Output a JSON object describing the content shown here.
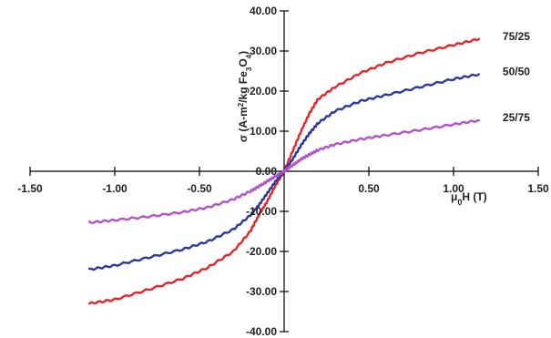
{
  "chart_data": {
    "type": "line",
    "title": "",
    "xlabel": {
      "prefix": "μ",
      "subscript": "0",
      "suffix": "H (T)"
    },
    "ylabel": {
      "p1": "σ (A-m",
      "sup": "2",
      "p2": "/kg Fe",
      "sub1": "3",
      "p3": "O",
      "sub2": "4",
      "p4": ")"
    },
    "xlim": [
      -1.5,
      1.5
    ],
    "ylim": [
      -40,
      40
    ],
    "x_ticks": [
      -1.5,
      -1.0,
      -0.5,
      0.0,
      0.5,
      1.0,
      1.5
    ],
    "x_tick_labels": [
      "-1.50",
      "-1.00",
      "-0.50",
      "0.00",
      "0.50",
      "1.00",
      "1.50"
    ],
    "y_ticks": [
      40,
      30,
      20,
      10,
      0,
      -10,
      -20,
      -30,
      -40
    ],
    "y_tick_labels": [
      "40.00",
      "30.00",
      "20.00",
      "10.00",
      "0.00",
      "-10.00",
      "-20.00",
      "-30.00",
      "-40.00"
    ],
    "grid": false,
    "legend": "inline labels at right end of curves",
    "series": [
      {
        "name": "75/25",
        "color": "#e3262b",
        "x": [
          -1.15,
          -1.0,
          -0.8,
          -0.6,
          -0.45,
          -0.3,
          -0.2,
          -0.15,
          -0.1,
          -0.05,
          0.0,
          0.05,
          0.1,
          0.15,
          0.2,
          0.3,
          0.45,
          0.6,
          0.8,
          1.0,
          1.15
        ],
        "y": [
          -33.0,
          -32.0,
          -29.5,
          -26.8,
          -24.0,
          -20.0,
          -15.0,
          -11.0,
          -7.5,
          -3.5,
          0.0,
          5.0,
          10.0,
          14.5,
          18.0,
          21.0,
          24.5,
          27.0,
          29.5,
          31.5,
          33.0
        ]
      },
      {
        "name": "50/50",
        "color": "#2e3a99",
        "x": [
          -1.15,
          -1.0,
          -0.8,
          -0.6,
          -0.45,
          -0.3,
          -0.2,
          -0.15,
          -0.1,
          -0.05,
          0.0,
          0.05,
          0.1,
          0.15,
          0.2,
          0.3,
          0.45,
          0.6,
          0.8,
          1.0,
          1.15
        ],
        "y": [
          -24.5,
          -23.5,
          -21.5,
          -19.5,
          -17.5,
          -14.5,
          -11.0,
          -8.5,
          -5.5,
          -2.5,
          0.0,
          3.0,
          6.5,
          9.5,
          12.0,
          15.0,
          17.5,
          19.0,
          21.0,
          23.0,
          24.2
        ]
      },
      {
        "name": "25/75",
        "color": "#b254c9",
        "x": [
          -1.15,
          -1.0,
          -0.8,
          -0.6,
          -0.45,
          -0.3,
          -0.2,
          -0.15,
          -0.1,
          -0.05,
          0.0,
          0.05,
          0.1,
          0.15,
          0.2,
          0.3,
          0.45,
          0.6,
          0.8,
          1.0,
          1.15
        ],
        "y": [
          -12.8,
          -12.2,
          -11.3,
          -10.2,
          -9.0,
          -7.0,
          -5.0,
          -3.8,
          -2.5,
          -1.2,
          0.0,
          1.5,
          3.0,
          4.2,
          5.3,
          6.7,
          8.0,
          9.0,
          10.3,
          11.7,
          12.7
        ]
      }
    ]
  }
}
